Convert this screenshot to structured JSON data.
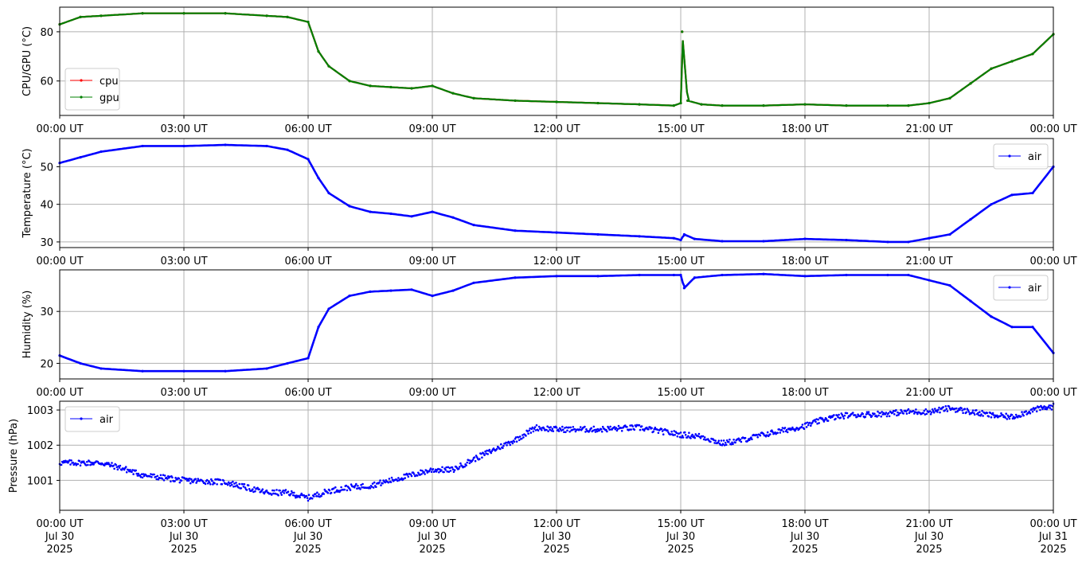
{
  "x_ticks": {
    "labels": [
      "00:00 UT",
      "03:00 UT",
      "06:00 UT",
      "09:00 UT",
      "12:00 UT",
      "15:00 UT",
      "18:00 UT",
      "21:00 UT",
      "00:00 UT"
    ],
    "positions_h": [
      0,
      3,
      6,
      9,
      12,
      15,
      18,
      21,
      24
    ],
    "bottom_date_line1": [
      "Jul 30",
      "Jul 30",
      "Jul 30",
      "Jul 30",
      "Jul 30",
      "Jul 30",
      "Jul 30",
      "Jul 30",
      "Jul 31"
    ],
    "bottom_date_line2": [
      "2025",
      "2025",
      "2025",
      "2025",
      "2025",
      "2025",
      "2025",
      "2025",
      "2025"
    ]
  },
  "colors": {
    "cpu": "#ff0000",
    "gpu": "#008000",
    "air": "#0000ff",
    "grid": "#b0b0b0"
  },
  "chart_data": [
    {
      "type": "line",
      "ylabel": "CPU/GPU (°C)",
      "ylim": [
        46,
        90
      ],
      "yticks": [
        60,
        80
      ],
      "xlim": [
        "2025-07-30 00:00 UT",
        "2025-07-31 00:00 UT"
      ],
      "grid": true,
      "legend": "lower-left",
      "x": [
        "2025-07-30 00:00",
        "00:30",
        "01:00",
        "02:00",
        "03:00",
        "04:00",
        "05:00",
        "05:30",
        "06:00",
        "06:15",
        "06:30",
        "07:00",
        "07:30",
        "08:00",
        "08:30",
        "09:00",
        "09:30",
        "10:00",
        "11:00",
        "12:00",
        "13:00",
        "14:00",
        "14:50",
        "15:00",
        "15:02",
        "15:10",
        "15:30",
        "16:00",
        "17:00",
        "18:00",
        "19:00",
        "20:00",
        "20:30",
        "21:00",
        "21:30",
        "22:00",
        "22:30",
        "23:00",
        "23:30",
        "2025-07-31 00:00"
      ],
      "series": [
        {
          "name": "cpu",
          "y": [
            83,
            86,
            86.5,
            87.5,
            87.5,
            87.5,
            86.5,
            86,
            84,
            72,
            66,
            60,
            58,
            57.5,
            57,
            58,
            55,
            53,
            52,
            51.5,
            51,
            50.5,
            50,
            51,
            80,
            52,
            50.5,
            50,
            50,
            50.5,
            50,
            50,
            50,
            51,
            53,
            59,
            65,
            68,
            71,
            79
          ]
        },
        {
          "name": "gpu",
          "y": [
            83,
            86,
            86.5,
            87.5,
            87.5,
            87.5,
            86.5,
            86,
            84,
            72,
            66,
            60,
            58,
            57.5,
            57,
            58,
            55,
            53,
            52,
            51.5,
            51,
            50.5,
            50,
            51,
            80,
            52,
            50.5,
            50,
            50,
            50.5,
            50,
            50,
            50,
            51,
            53,
            59,
            65,
            68,
            71,
            79
          ]
        }
      ]
    },
    {
      "type": "line",
      "ylabel": "Temperature (°C)",
      "ylim": [
        28.5,
        57.5
      ],
      "yticks": [
        30,
        40,
        50
      ],
      "grid": true,
      "legend": "top-right",
      "x": [
        "2025-07-30 00:00",
        "00:30",
        "01:00",
        "02:00",
        "03:00",
        "04:00",
        "05:00",
        "05:30",
        "06:00",
        "06:15",
        "06:30",
        "07:00",
        "07:30",
        "08:00",
        "08:30",
        "09:00",
        "09:30",
        "10:00",
        "11:00",
        "12:00",
        "13:00",
        "14:00",
        "14:50",
        "15:00",
        "15:05",
        "15:20",
        "16:00",
        "17:00",
        "18:00",
        "19:00",
        "20:00",
        "20:30",
        "21:00",
        "21:30",
        "22:00",
        "22:30",
        "23:00",
        "23:30",
        "2025-07-31 00:00"
      ],
      "series": [
        {
          "name": "air",
          "y": [
            51,
            52.5,
            54,
            55.5,
            55.5,
            55.8,
            55.5,
            54.5,
            52,
            47,
            43,
            39.5,
            38,
            37.5,
            36.8,
            38,
            36.5,
            34.5,
            33,
            32.5,
            32,
            31.5,
            31,
            30.5,
            32,
            30.8,
            30.2,
            30.2,
            30.8,
            30.5,
            30,
            30,
            31,
            32,
            36,
            40,
            42.5,
            43,
            50
          ]
        }
      ]
    },
    {
      "type": "line",
      "ylabel": "Humidity (%)",
      "ylim": [
        17,
        38
      ],
      "yticks": [
        20,
        30
      ],
      "grid": true,
      "legend": "top-right",
      "x": [
        "2025-07-30 00:00",
        "00:30",
        "01:00",
        "02:00",
        "03:00",
        "04:00",
        "05:00",
        "05:30",
        "06:00",
        "06:15",
        "06:30",
        "07:00",
        "07:30",
        "08:00",
        "08:30",
        "09:00",
        "09:30",
        "10:00",
        "11:00",
        "12:00",
        "13:00",
        "14:00",
        "14:50",
        "15:00",
        "15:05",
        "15:20",
        "16:00",
        "17:00",
        "18:00",
        "19:00",
        "20:00",
        "20:30",
        "21:00",
        "21:30",
        "22:00",
        "22:30",
        "23:00",
        "23:30",
        "2025-07-31 00:00"
      ],
      "series": [
        {
          "name": "air",
          "y": [
            21.5,
            20,
            19,
            18.5,
            18.5,
            18.5,
            19,
            20,
            21,
            27,
            30.5,
            33,
            33.8,
            34,
            34.2,
            33,
            34,
            35.5,
            36.5,
            36.8,
            36.8,
            37,
            37,
            37,
            34.5,
            36.5,
            37,
            37.2,
            36.8,
            37,
            37,
            37,
            36,
            35,
            32,
            29,
            27,
            27,
            22
          ]
        }
      ]
    },
    {
      "type": "scatter",
      "ylabel": "Pressure (hPa)",
      "ylim": [
        1000.15,
        1003.25
      ],
      "yticks": [
        1001,
        1002,
        1003
      ],
      "grid": true,
      "legend": "top-left",
      "x": [
        "2025-07-30 00:00",
        "00:30",
        "01:00",
        "01:30",
        "02:00",
        "03:00",
        "04:00",
        "05:00",
        "05:30",
        "06:00",
        "06:30",
        "07:00",
        "07:30",
        "08:00",
        "09:00",
        "09:30",
        "10:00",
        "11:00",
        "11:30",
        "12:00",
        "12:30",
        "13:00",
        "14:00",
        "15:00",
        "15:30",
        "16:00",
        "16:30",
        "17:00",
        "18:00",
        "18:30",
        "19:00",
        "20:00",
        "20:30",
        "21:00",
        "21:30",
        "22:00",
        "22:30",
        "23:00",
        "23:30",
        "2025-07-31 00:00"
      ],
      "series": [
        {
          "name": "air",
          "y": [
            1001.5,
            1001.5,
            1001.5,
            1001.35,
            1001.15,
            1001.0,
            1000.95,
            1000.65,
            1000.65,
            1000.5,
            1000.7,
            1000.8,
            1000.85,
            1001.0,
            1001.3,
            1001.3,
            1001.6,
            1002.15,
            1002.5,
            1002.45,
            1002.45,
            1002.45,
            1002.5,
            1002.3,
            1002.25,
            1002.05,
            1002.15,
            1002.3,
            1002.55,
            1002.75,
            1002.85,
            1002.9,
            1002.95,
            1002.95,
            1003.05,
            1002.95,
            1002.85,
            1002.8,
            1003.0,
            1003.1
          ]
        }
      ]
    }
  ]
}
